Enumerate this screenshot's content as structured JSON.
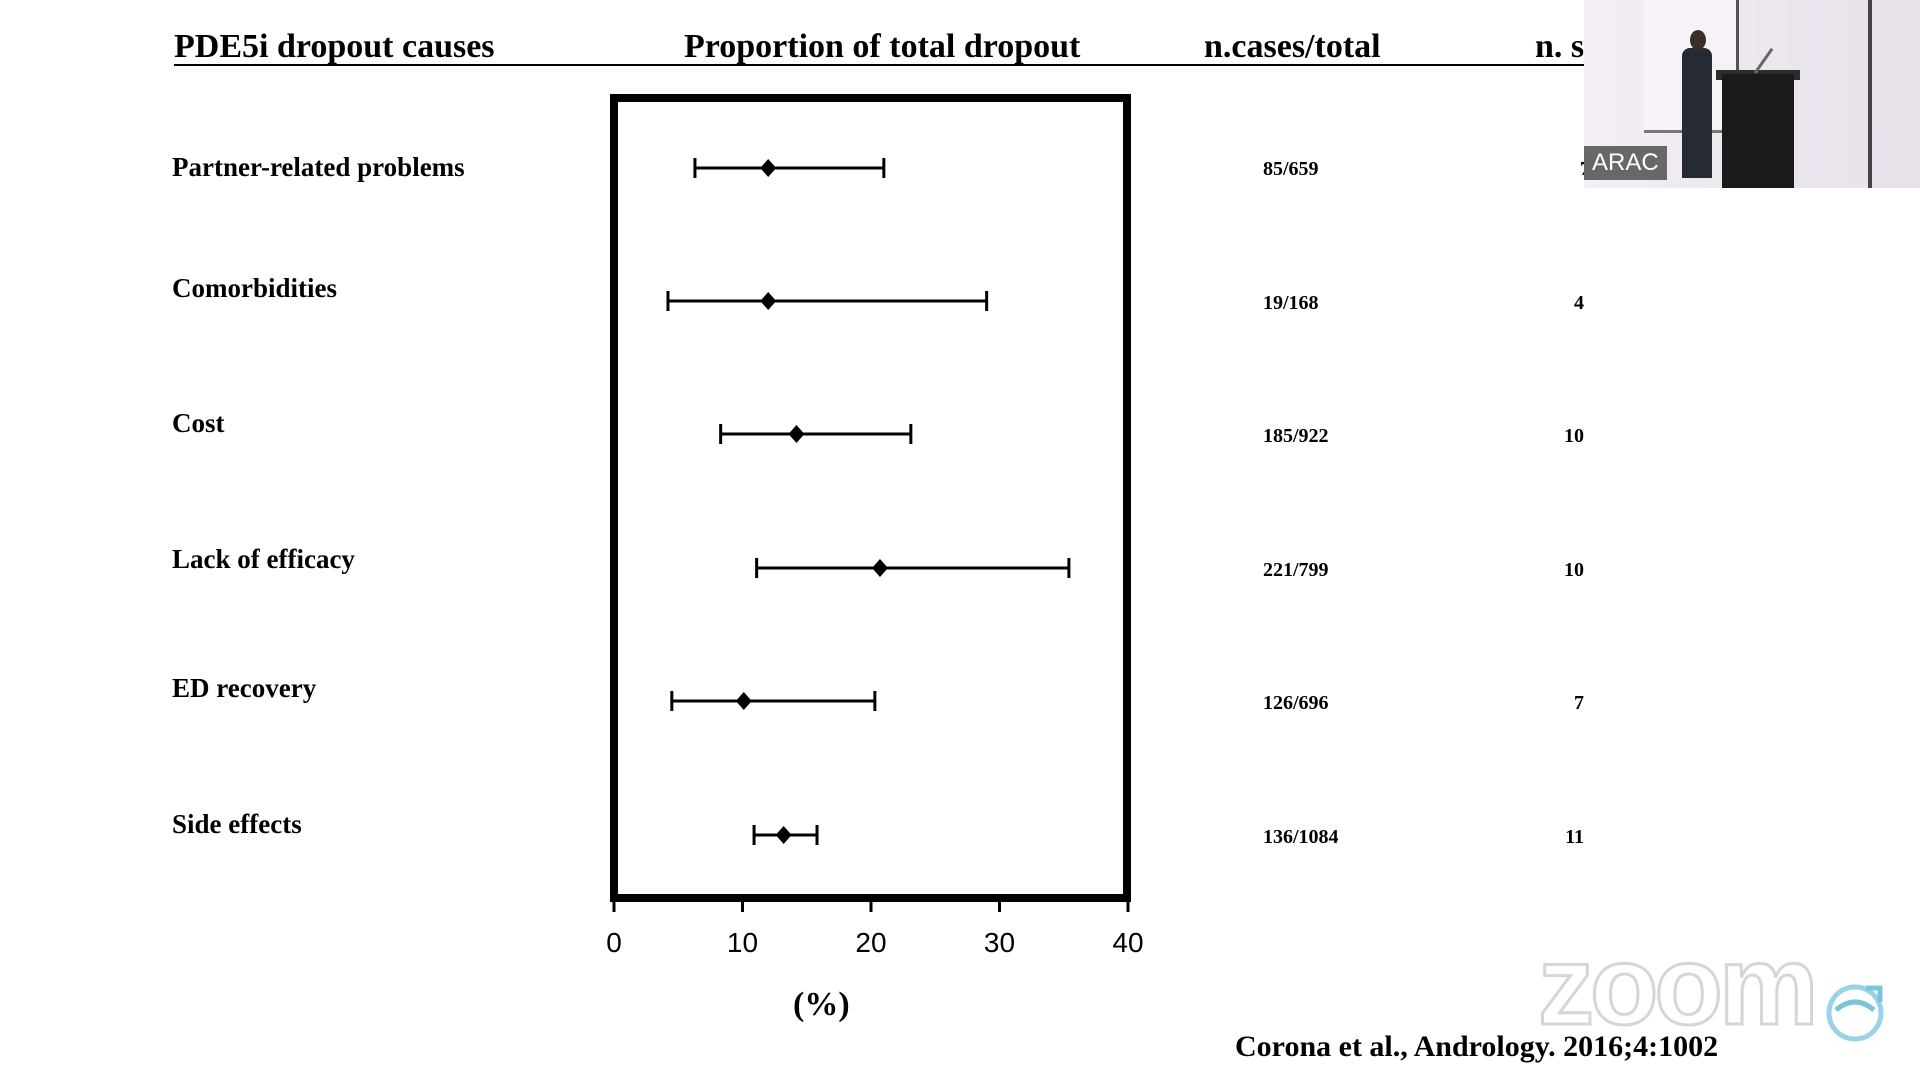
{
  "headers": {
    "causes": "PDE5i dropout causes",
    "proportion": "Proportion of total dropout",
    "cases": "n.cases/total",
    "studies": "n. s"
  },
  "chart_data": {
    "type": "forest",
    "categories": [
      "Partner-related problems",
      "Comorbidities",
      "Cost",
      "Lack of efficacy",
      "ED recovery",
      "Side effects"
    ],
    "series": [
      {
        "values": [
          12.0,
          12.0,
          14.2,
          20.7,
          10.1,
          13.2
        ],
        "ci_low": [
          6.3,
          4.2,
          8.3,
          11.1,
          4.5,
          10.9
        ],
        "ci_high": [
          21.0,
          29.0,
          23.1,
          35.4,
          20.3,
          15.8
        ]
      }
    ],
    "xlim": [
      0,
      40
    ],
    "xticks": [
      "0",
      "10",
      "20",
      "30",
      "40"
    ],
    "xlabel": "(%)",
    "cases_total": [
      "85/659",
      "19/168",
      "185/922",
      "221/799",
      "126/696",
      "136/1084"
    ],
    "n_studies": [
      "7",
      "4",
      "10",
      "10",
      "7",
      "11"
    ]
  },
  "citation": "Corona et al., Andrology. 2016;4:1002",
  "video_thumbnail": {
    "name_tag": "ARAC"
  },
  "watermark": {
    "text": "zoom"
  },
  "colors": {
    "ink": "#000000",
    "background": "#ffffff"
  }
}
